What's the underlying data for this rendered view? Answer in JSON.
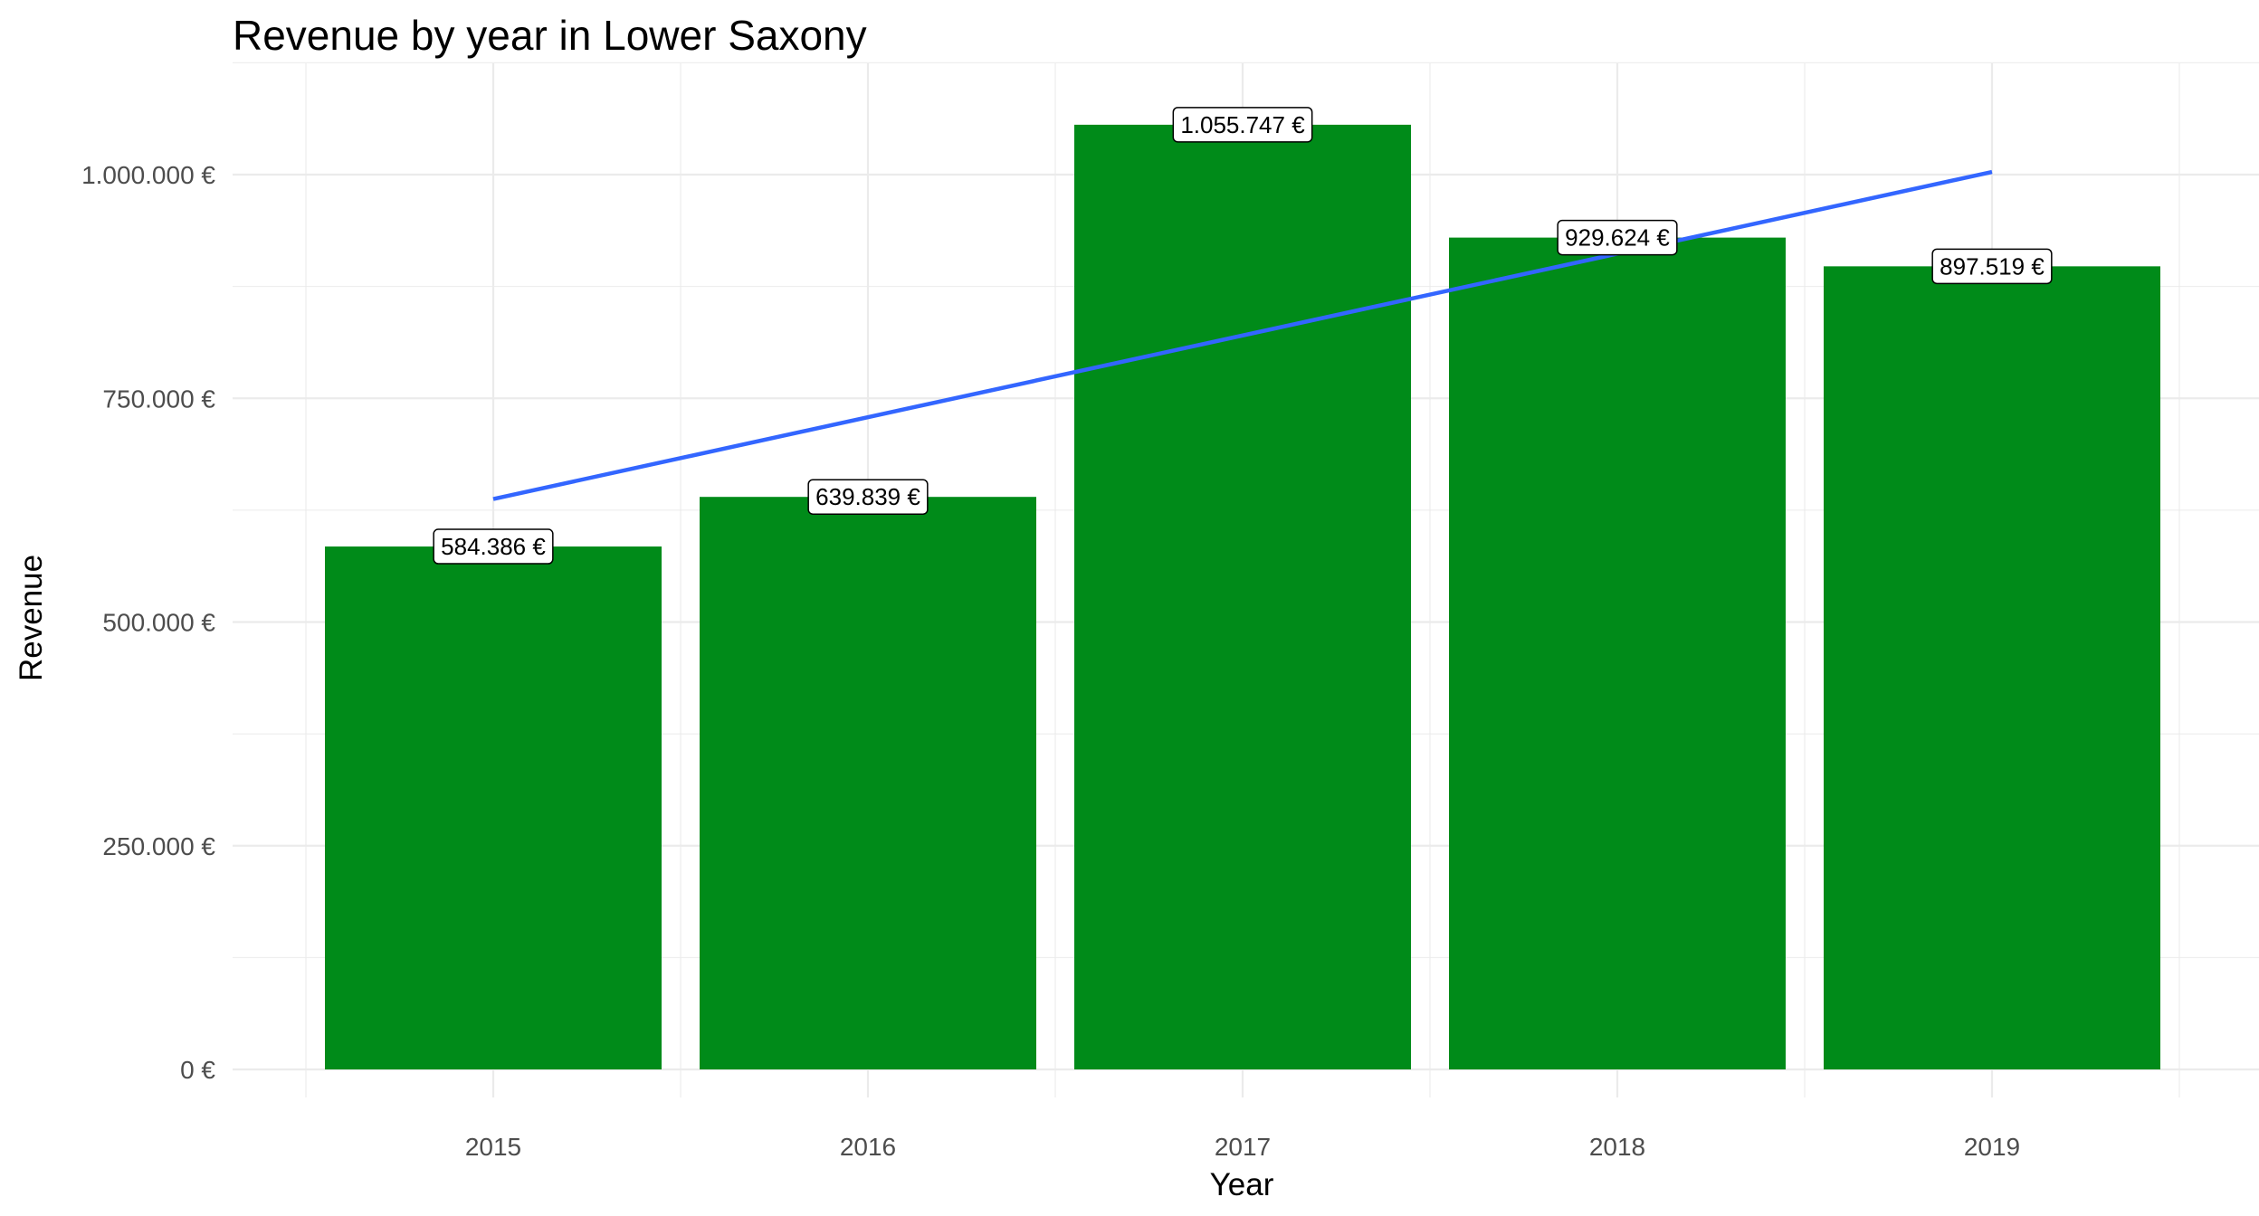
{
  "chart_data": {
    "type": "bar",
    "title": "Revenue by year in Lower Saxony",
    "xlabel": "Year",
    "ylabel": "Revenue",
    "categories": [
      "2015",
      "2016",
      "2017",
      "2018",
      "2019"
    ],
    "values": [
      584386,
      639839,
      1055747,
      929624,
      897519
    ],
    "data_labels": [
      "584.386 €",
      "639.839 €",
      "1.055.747 €",
      "929.624 €",
      "897.519 €"
    ],
    "yticks": [
      0,
      250000,
      500000,
      750000,
      1000000
    ],
    "ytick_labels": [
      "0 €",
      "250.000 €",
      "500.000 €",
      "750.000 €",
      "1.000.000 €"
    ],
    "ylim": [
      0,
      1108000
    ],
    "grid": true,
    "legend": "none",
    "trend_line": {
      "type": "linear",
      "start": [
        "2015",
        637500
      ],
      "end": [
        "2019",
        1003000
      ]
    },
    "colors": {
      "bar": "#008b19",
      "trend": "#3366ff",
      "grid": "#ebebeb"
    }
  }
}
